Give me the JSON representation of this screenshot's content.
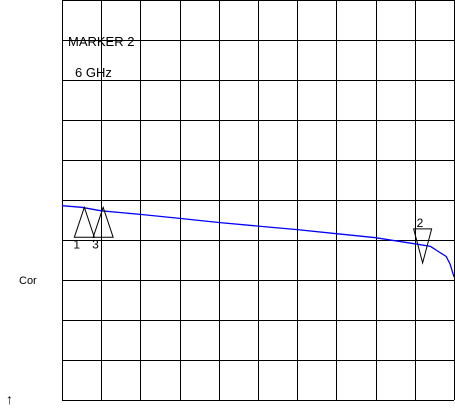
{
  "marker_readout": {
    "title": "MARKER 2",
    "frequency": "6 GHz"
  },
  "side_label": "Cor",
  "side_arrow": "↑",
  "markers": [
    {
      "label": "1",
      "direction": "up",
      "x_fraction": 0.057,
      "level_db": -4.1
    },
    {
      "label": "3",
      "direction": "up",
      "x_fraction": 0.105,
      "level_db": -4.1
    },
    {
      "label": "2",
      "direction": "down",
      "x_fraction": 0.92,
      "level_db": -4.9
    }
  ],
  "chart_data": {
    "type": "line",
    "grid": true,
    "x_divisions": 10,
    "y_divisions": 10,
    "series": [
      {
        "color": "#0000ff",
        "x": [
          0.0,
          0.05,
          0.1,
          0.2,
          0.3,
          0.4,
          0.5,
          0.6,
          0.7,
          0.8,
          0.9,
          0.94,
          0.96,
          0.98,
          0.99,
          1.0
        ],
        "y": [
          -4.05,
          -4.08,
          -4.15,
          -4.22,
          -4.3,
          -4.38,
          -4.45,
          -4.52,
          -4.6,
          -4.68,
          -4.8,
          -4.85,
          -4.95,
          -5.05,
          -5.2,
          -5.45
        ]
      }
    ]
  },
  "colors": {
    "grid": "#000000",
    "trace": "#0000ff",
    "background": "#ffffff"
  }
}
